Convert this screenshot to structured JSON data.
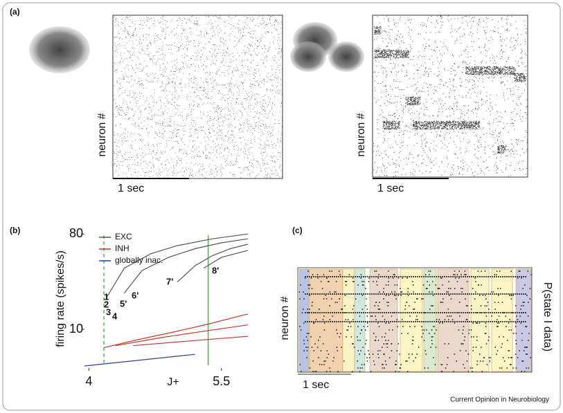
{
  "panels": {
    "a": {
      "label": "(a)",
      "left": {
        "y_label": "neuron #",
        "scale_bar": "1 sec"
      },
      "right": {
        "y_label": "neuron #",
        "scale_bar": "1 sec"
      }
    },
    "b": {
      "label": "(b)"
    },
    "c": {
      "label": "(c)",
      "y_label": "neuron #",
      "right_label": "P(state I data)",
      "scale_bar": "1 sec"
    }
  },
  "footer": "Current Opinion in Neurobiology",
  "chart_data": {
    "type": "line",
    "ylabel": "firing rate (spikes/s)",
    "xlabel": "J+",
    "xlim": [
      3.95,
      5.8
    ],
    "ylim": [
      4.3,
      84
    ],
    "log_y": true,
    "xticks": [
      4,
      5.5
    ],
    "yticks": [
      10,
      80
    ],
    "vlines": [
      {
        "x": 4.17,
        "style": "dashed"
      },
      {
        "x": 5.35,
        "style": "solid"
      }
    ],
    "vline_color": "#3aa83a",
    "curve_labels": [
      "1",
      "2",
      "3",
      "4",
      "5'",
      "6'",
      "7'",
      "8'"
    ],
    "series": [
      {
        "name": "EXC",
        "color": "#555555",
        "curves": [
          {
            "x": [
              4.2,
              4.4,
              4.7,
              5.0,
              5.4,
              5.8
            ],
            "values": [
              20,
              38,
              52,
              62,
              72,
              80
            ]
          },
          {
            "x": [
              4.4,
              4.6,
              4.9,
              5.2,
              5.5,
              5.8
            ],
            "values": [
              22,
              36,
              48,
              58,
              66,
              72
            ]
          },
          {
            "x": [
              5.0,
              5.2,
              5.4,
              5.6,
              5.8
            ],
            "values": [
              28,
              40,
              50,
              58,
              64
            ]
          },
          {
            "x": [
              5.3,
              5.5,
              5.8
            ],
            "values": [
              38,
              48,
              56
            ]
          }
        ]
      },
      {
        "name": "INH",
        "color": "#c0392b",
        "curves": [
          {
            "x": [
              4.17,
              4.5,
              5.0,
              5.35,
              5.8
            ],
            "values": [
              6.7,
              7.8,
              9.6,
              11.2,
              14
            ]
          },
          {
            "x": [
              4.3,
              4.8,
              5.3,
              5.8
            ],
            "values": [
              7,
              8.3,
              9.6,
              11
            ]
          },
          {
            "x": [
              4.5,
              5.0,
              5.5,
              5.8
            ],
            "values": [
              7,
              7.6,
              8.2,
              8.6
            ]
          }
        ]
      },
      {
        "name": "globally inac.",
        "color": "#2c3e8f",
        "curves": [
          {
            "x": [
              3.95,
              5.2
            ],
            "values": [
              4.5,
              5.8
            ]
          }
        ]
      }
    ]
  }
}
